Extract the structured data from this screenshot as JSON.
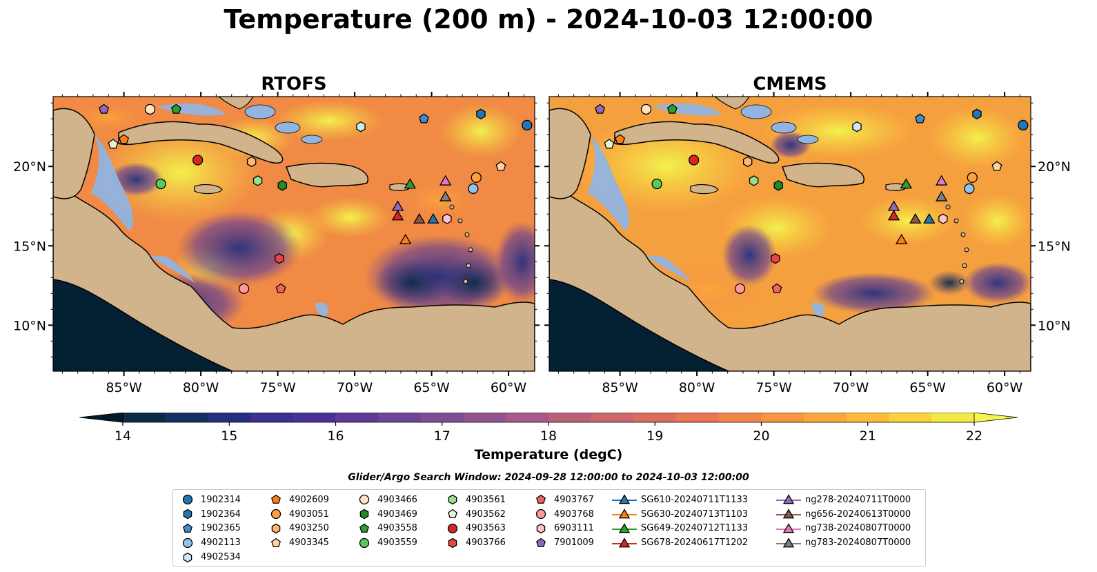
{
  "title": "Temperature (200 m) - 2024-10-03 12:00:00",
  "panels": [
    {
      "title": "RTOFS"
    },
    {
      "title": "CMEMS"
    }
  ],
  "axes": {
    "lon_ticks": [
      -85,
      -80,
      -75,
      -70,
      -65,
      -60
    ],
    "lon_labels": [
      "85°W",
      "80°W",
      "75°W",
      "70°W",
      "65°W",
      "60°W"
    ],
    "lat_ticks": [
      10,
      15,
      20
    ],
    "lat_labels": [
      "10°N",
      "15°N",
      "20°N"
    ],
    "lon_range": [
      -89.6,
      -58.3
    ],
    "lat_range": [
      7.1,
      24.4
    ]
  },
  "colorbar": {
    "label": "Temperature (degC)",
    "min": 14,
    "max": 22,
    "step": 0.5,
    "ticks": [
      14,
      15,
      16,
      17,
      18,
      19,
      20,
      21,
      22
    ],
    "tick_labels": [
      "14",
      "15",
      "16",
      "17",
      "18",
      "19",
      "20",
      "21",
      "22"
    ],
    "colors": [
      "#0b2a48",
      "#182e63",
      "#262f7f",
      "#3a2f93",
      "#4b3296",
      "#5c3a97",
      "#6e4596",
      "#7f4d93",
      "#925490",
      "#a75a87",
      "#bb6079",
      "#cd666b",
      "#dc6c5d",
      "#e97552",
      "#f38447",
      "#f8953e",
      "#fba83a",
      "#fcbb3b",
      "#fbd23c",
      "#f2ea45"
    ],
    "under_color": "#031a2b",
    "over_color": "#f2f64e"
  },
  "search_window": "Glider/Argo Search Window: 2024-09-28 12:00:00 to 2024-10-03 12:00:00",
  "map_colors": {
    "land": "#d2b48c",
    "shallow": "#92b4e0",
    "deep_land": "#042033",
    "coast": "#000000"
  },
  "legend": [
    [
      {
        "label": "1902314",
        "marker": "circle",
        "color": "#1f77b4"
      },
      {
        "label": "1902364",
        "marker": "hexagon",
        "color": "#1f77b4"
      },
      {
        "label": "1902365",
        "marker": "pentagon",
        "color": "#3a8fd0"
      },
      {
        "label": "4902113",
        "marker": "circle",
        "color": "#93c2ec"
      },
      {
        "label": "4902534",
        "marker": "hexagon",
        "color": "#cfe6f7"
      }
    ],
    [
      {
        "label": "4902609",
        "marker": "pentagon",
        "color": "#ff7f0e"
      },
      {
        "label": "4903051",
        "marker": "circle",
        "color": "#ffa040"
      },
      {
        "label": "4903250",
        "marker": "hexagon",
        "color": "#ffb870"
      },
      {
        "label": "4903345",
        "marker": "pentagon",
        "color": "#ffd2a0"
      }
    ],
    [
      {
        "label": "4903466",
        "marker": "circle",
        "color": "#ffe4c4"
      },
      {
        "label": "4903469",
        "marker": "hexagon",
        "color": "#1e8a2a"
      },
      {
        "label": "4903558",
        "marker": "pentagon",
        "color": "#2ca02c"
      },
      {
        "label": "4903559",
        "marker": "circle",
        "color": "#5cc85c"
      }
    ],
    [
      {
        "label": "4903561",
        "marker": "hexagon",
        "color": "#98df8a"
      },
      {
        "label": "4903562",
        "marker": "pentagon",
        "color": "#e6f7d6"
      },
      {
        "label": "4903563",
        "marker": "circle",
        "color": "#d62728"
      },
      {
        "label": "4903766",
        "marker": "hexagon",
        "color": "#e84545"
      }
    ],
    [
      {
        "label": "4903767",
        "marker": "pentagon",
        "color": "#f06262"
      },
      {
        "label": "4903768",
        "marker": "circle",
        "color": "#ff9896"
      },
      {
        "label": "6903111",
        "marker": "hexagon",
        "color": "#ffc4c4"
      },
      {
        "label": "7901009",
        "marker": "pentagon",
        "color": "#9467bd"
      }
    ],
    [
      {
        "label": "SG610-20240711T1133",
        "marker": "triangle",
        "color": "#1f77b4",
        "line": true
      },
      {
        "label": "SG630-20240713T1103",
        "marker": "triangle",
        "color": "#ff7f0e",
        "line": true
      },
      {
        "label": "SG649-20240712T1133",
        "marker": "triangle",
        "color": "#2ca02c",
        "line": true
      },
      {
        "label": "SG678-20240617T1202",
        "marker": "triangle",
        "color": "#d62728",
        "line": true
      }
    ],
    [
      {
        "label": "ng278-20240711T0000",
        "marker": "triangle",
        "color": "#9467bd",
        "line": true
      },
      {
        "label": "ng656-20240613T0000",
        "marker": "triangle",
        "color": "#8c564b",
        "line": true
      },
      {
        "label": "ng738-20240807T0000",
        "marker": "triangle",
        "color": "#e377c2",
        "line": true
      },
      {
        "label": "ng783-20240807T0000",
        "marker": "triangle",
        "color": "#7f7f7f",
        "line": true
      }
    ]
  ],
  "platforms": [
    {
      "id": "1902314",
      "lon": -58.8,
      "lat": 22.6
    },
    {
      "id": "1902364",
      "lon": -61.8,
      "lat": 23.3
    },
    {
      "id": "1902365",
      "lon": -65.5,
      "lat": 23.0
    },
    {
      "id": "4902113",
      "lon": -62.3,
      "lat": 18.6
    },
    {
      "id": "4902534",
      "lon": -69.6,
      "lat": 22.5
    },
    {
      "id": "4902609",
      "lon": -85.0,
      "lat": 21.7
    },
    {
      "id": "4903051",
      "lon": -62.1,
      "lat": 19.3
    },
    {
      "id": "4903250",
      "lon": -76.7,
      "lat": 20.3
    },
    {
      "id": "4903345",
      "lon": -60.5,
      "lat": 20.0
    },
    {
      "id": "4903466",
      "lon": -83.3,
      "lat": 23.6
    },
    {
      "id": "4903469",
      "lon": -74.7,
      "lat": 18.8
    },
    {
      "id": "4903558",
      "lon": -81.6,
      "lat": 23.6
    },
    {
      "id": "4903559",
      "lon": -82.6,
      "lat": 18.9
    },
    {
      "id": "4903561",
      "lon": -76.3,
      "lat": 19.1
    },
    {
      "id": "4903562",
      "lon": -85.7,
      "lat": 21.4
    },
    {
      "id": "4903563",
      "lon": -80.2,
      "lat": 20.4
    },
    {
      "id": "4903766",
      "lon": -74.9,
      "lat": 14.2
    },
    {
      "id": "4903767",
      "lon": -74.8,
      "lat": 12.3
    },
    {
      "id": "4903768",
      "lon": -77.2,
      "lat": 12.3
    },
    {
      "id": "6903111",
      "lon": -64.0,
      "lat": 16.7
    },
    {
      "id": "7901009",
      "lon": -86.3,
      "lat": 23.6
    },
    {
      "id": "SG610-20240711T1133",
      "lon": -64.9,
      "lat": 16.7
    },
    {
      "id": "SG630-20240713T1103",
      "lon": -66.7,
      "lat": 15.4
    },
    {
      "id": "SG649-20240712T1133",
      "lon": -66.4,
      "lat": 18.9
    },
    {
      "id": "SG678-20240617T1202",
      "lon": -67.2,
      "lat": 16.9
    },
    {
      "id": "ng278-20240711T0000",
      "lon": -67.2,
      "lat": 17.5
    },
    {
      "id": "ng656-20240613T0000",
      "lon": -65.8,
      "lat": 16.7
    },
    {
      "id": "ng738-20240807T0000",
      "lon": -64.1,
      "lat": 19.1
    },
    {
      "id": "ng783-20240807T0000",
      "lon": -64.1,
      "lat": 18.1
    }
  ]
}
